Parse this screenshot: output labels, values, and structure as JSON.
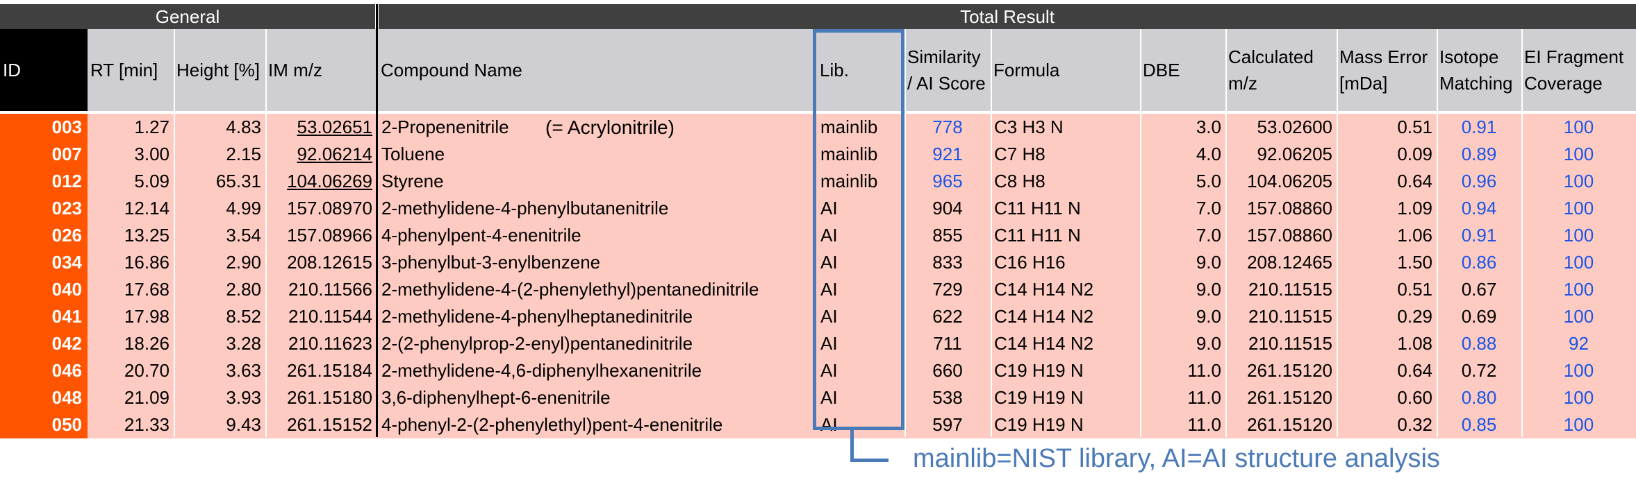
{
  "groups": {
    "general": "General",
    "total": "Total Result"
  },
  "headers": {
    "id": "ID",
    "rt": "RT [min]",
    "height": "Height [%]",
    "im_mz": "IM m/z",
    "compound": "Compound Name",
    "lib": "Lib.",
    "score_line1": "Similarity",
    "score_line2": "/ AI Score",
    "formula": "Formula",
    "dbe": "DBE",
    "calc_line1": "Calculated",
    "calc_line2": "m/z",
    "err_line1": "Mass Error",
    "err_line2": "[mDa]",
    "iso_line1": "Isotope",
    "iso_line2": "Matching",
    "ei_line1": "EI Fragment",
    "ei_line2": "Coverage"
  },
  "acrylonitrile_note": "(= Acrylonitrile)",
  "rows": [
    {
      "id": "003",
      "rt": "1.27",
      "height": "4.83",
      "mz": "53.02651",
      "compound": "2-Propenenitrile",
      "lib": "mainlib",
      "score": "778",
      "formula": "C3 H3 N",
      "dbe": "3.0",
      "calc": "53.02600",
      "err": "0.51",
      "iso": "0.91",
      "ei": "100"
    },
    {
      "id": "007",
      "rt": "3.00",
      "height": "2.15",
      "mz": "92.06214",
      "compound": "Toluene",
      "lib": "mainlib",
      "score": "921",
      "formula": "C7 H8",
      "dbe": "4.0",
      "calc": "92.06205",
      "err": "0.09",
      "iso": "0.89",
      "ei": "100"
    },
    {
      "id": "012",
      "rt": "5.09",
      "height": "65.31",
      "mz": "104.06269",
      "compound": "Styrene",
      "lib": "mainlib",
      "score": "965",
      "formula": "C8 H8",
      "dbe": "5.0",
      "calc": "104.06205",
      "err": "0.64",
      "iso": "0.96",
      "ei": "100"
    },
    {
      "id": "023",
      "rt": "12.14",
      "height": "4.99",
      "mz": "157.08970",
      "compound": "2-methylidene-4-phenylbutanenitrile",
      "lib": "AI",
      "score": "904",
      "formula": "C11 H11 N",
      "dbe": "7.0",
      "calc": "157.08860",
      "err": "1.09",
      "iso": "0.94",
      "ei": "100"
    },
    {
      "id": "026",
      "rt": "13.25",
      "height": "3.54",
      "mz": "157.08966",
      "compound": "4-phenylpent-4-enenitrile",
      "lib": "AI",
      "score": "855",
      "formula": "C11 H11 N",
      "dbe": "7.0",
      "calc": "157.08860",
      "err": "1.06",
      "iso": "0.91",
      "ei": "100"
    },
    {
      "id": "034",
      "rt": "16.86",
      "height": "2.90",
      "mz": "208.12615",
      "compound": "3-phenylbut-3-enylbenzene",
      "lib": "AI",
      "score": "833",
      "formula": "C16 H16",
      "dbe": "9.0",
      "calc": "208.12465",
      "err": "1.50",
      "iso": "0.86",
      "ei": "100"
    },
    {
      "id": "040",
      "rt": "17.68",
      "height": "2.80",
      "mz": "210.11566",
      "compound": "2-methylidene-4-(2-phenylethyl)pentanedinitrile",
      "lib": "AI",
      "score": "729",
      "formula": "C14 H14 N2",
      "dbe": "9.0",
      "calc": "210.11515",
      "err": "0.51",
      "iso": "0.67",
      "ei": "100"
    },
    {
      "id": "041",
      "rt": "17.98",
      "height": "8.52",
      "mz": "210.11544",
      "compound": "2-methylidene-4-phenylheptanedinitrile",
      "lib": "AI",
      "score": "622",
      "formula": "C14 H14 N2",
      "dbe": "9.0",
      "calc": "210.11515",
      "err": "0.29",
      "iso": "0.69",
      "ei": "100"
    },
    {
      "id": "042",
      "rt": "18.26",
      "height": "3.28",
      "mz": "210.11623",
      "compound": "2-(2-phenylprop-2-enyl)pentanedinitrile",
      "lib": "AI",
      "score": "711",
      "formula": "C14 H14 N2",
      "dbe": "9.0",
      "calc": "210.11515",
      "err": "1.08",
      "iso": "0.88",
      "ei": "92"
    },
    {
      "id": "046",
      "rt": "20.70",
      "height": "3.63",
      "mz": "261.15184",
      "compound": "2-methylidene-4,6-diphenylhexanenitrile",
      "lib": "AI",
      "score": "660",
      "formula": "C19 H19 N",
      "dbe": "11.0",
      "calc": "261.15120",
      "err": "0.64",
      "iso": "0.72",
      "ei": "100"
    },
    {
      "id": "048",
      "rt": "21.09",
      "height": "3.93",
      "mz": "261.15180",
      "compound": "3,6-diphenylhept-6-enenitrile",
      "lib": "AI",
      "score": "538",
      "formula": "C19 H19 N",
      "dbe": "11.0",
      "calc": "261.15120",
      "err": "0.60",
      "iso": "0.80",
      "ei": "100"
    },
    {
      "id": "050",
      "rt": "21.33",
      "height": "9.43",
      "mz": "261.15152",
      "compound": "4-phenyl-2-(2-phenylethyl)pent-4-enenitrile",
      "lib": "AI",
      "score": "597",
      "formula": "C19 H19 N",
      "dbe": "11.0",
      "calc": "261.15120",
      "err": "0.32",
      "iso": "0.85",
      "ei": "100"
    }
  ],
  "blue_score_rows": [
    "003",
    "007",
    "012"
  ],
  "blue_iso_rows": [
    "003",
    "007",
    "012",
    "023",
    "026",
    "034",
    "042",
    "048",
    "050"
  ],
  "underlined_mz_rows": [
    "003",
    "007",
    "012"
  ],
  "footnote": "mainlib=NIST library, AI=AI structure analysis",
  "colors": {
    "group_header_bg": "#404040",
    "header_bg": "#cfcfd3",
    "id_bg": "#ff5500",
    "row_bg": "#fdcbc1",
    "blue_text": "#1a55e6",
    "annotation": "#4a7ab8"
  }
}
